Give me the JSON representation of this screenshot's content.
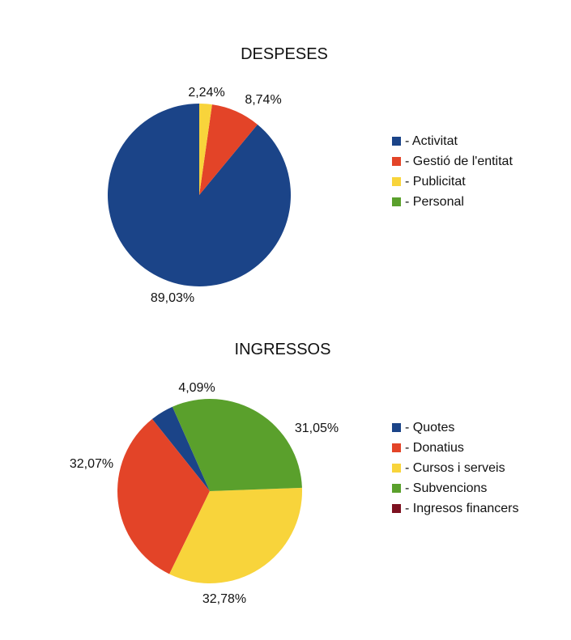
{
  "chart_data": [
    {
      "type": "pie",
      "title": "DESPESES",
      "slices": [
        {
          "label": "- Activitat",
          "value": 89.03,
          "display": "89,03%",
          "color": "#1b4488"
        },
        {
          "label": "- Gestió de l'entitat",
          "value": 8.74,
          "display": "8,74%",
          "color": "#e34428"
        },
        {
          "label": "- Publicitat",
          "value": 2.24,
          "display": "2,24%",
          "color": "#f8d43b"
        },
        {
          "label": "- Personal",
          "value": 0,
          "display": "",
          "color": "#5aa02c"
        }
      ],
      "legend_position": "right"
    },
    {
      "type": "pie",
      "title": "INGRESSOS",
      "slices": [
        {
          "label": "- Quotes",
          "value": 4.09,
          "display": "4,09%",
          "color": "#1b4488"
        },
        {
          "label": "- Donatius",
          "value": 32.07,
          "display": "32,07%",
          "color": "#e34428"
        },
        {
          "label": "- Cursos i serveis",
          "value": 32.78,
          "display": "32,78%",
          "color": "#f8d43b"
        },
        {
          "label": "- Subvencions",
          "value": 31.05,
          "display": "31,05%",
          "color": "#5aa02c"
        },
        {
          "label": "- Ingresos financers",
          "value": 0,
          "display": "",
          "color": "#7d1120"
        }
      ],
      "legend_position": "right"
    }
  ]
}
